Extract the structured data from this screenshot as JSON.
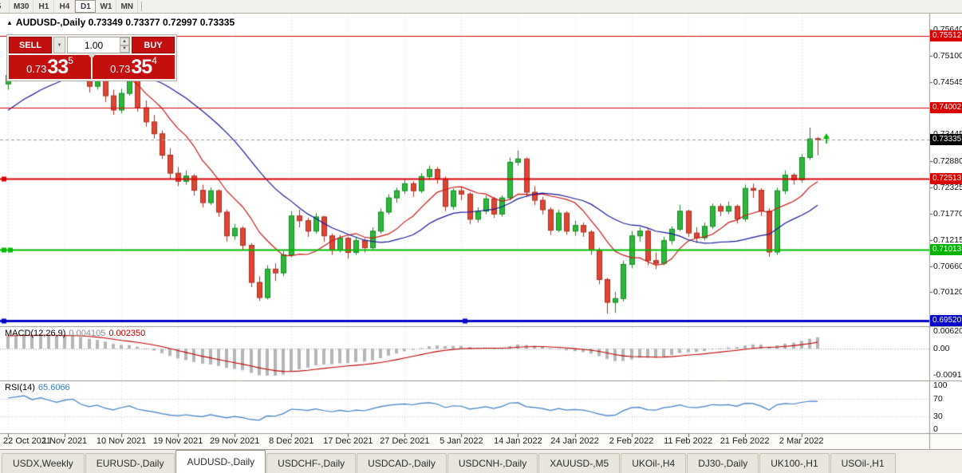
{
  "toolbar": {
    "timeframes": [
      {
        "label": "5",
        "active": false,
        "clipped": true
      },
      {
        "label": "M30",
        "active": false,
        "clipped": false
      },
      {
        "label": "H1",
        "active": false,
        "clipped": false
      },
      {
        "label": "H4",
        "active": false,
        "clipped": false
      },
      {
        "label": "D1",
        "active": true,
        "clipped": false
      },
      {
        "label": "W1",
        "active": false,
        "clipped": false
      },
      {
        "label": "MN",
        "active": false,
        "clipped": false
      }
    ]
  },
  "chart": {
    "collapse_arrow": "▲",
    "title": "AUDUSD-,Daily 0.73349 0.73377 0.72997 0.73335"
  },
  "trade_panel": {
    "sell_label": "SELL",
    "buy_label": "BUY",
    "volume": "1.00",
    "sell_price": {
      "base": "0.73",
      "big": "33",
      "sup": "5"
    },
    "buy_price": {
      "base": "0.73",
      "big": "35",
      "sup": "4"
    },
    "dropdown_icon": "▼",
    "spin_up_icon": "▲",
    "spin_down_icon": "▼"
  },
  "price_axis": {
    "labels": [
      {
        "text": "0.75640",
        "price": 0.7564,
        "kind": "plain"
      },
      {
        "text": "0.75512",
        "price": 0.75512,
        "kind": "red"
      },
      {
        "text": "0.75100",
        "price": 0.751,
        "kind": "plain"
      },
      {
        "text": "0.74545",
        "price": 0.74545,
        "kind": "plain"
      },
      {
        "text": "0.74002",
        "price": 0.74002,
        "kind": "red"
      },
      {
        "text": "0.73445",
        "price": 0.73445,
        "kind": "plain"
      },
      {
        "text": "0.73335",
        "price": 0.73335,
        "kind": "current"
      },
      {
        "text": "0.72880",
        "price": 0.7288,
        "kind": "plain"
      },
      {
        "text": "0.72513",
        "price": 0.72513,
        "kind": "red"
      },
      {
        "text": "0.72325",
        "price": 0.72325,
        "kind": "plain"
      },
      {
        "text": "0.71770",
        "price": 0.7177,
        "kind": "plain"
      },
      {
        "text": "0.71215",
        "price": 0.71215,
        "kind": "plain"
      },
      {
        "text": "0.71013",
        "price": 0.71013,
        "kind": "green"
      },
      {
        "text": "0.70660",
        "price": 0.7066,
        "kind": "plain"
      },
      {
        "text": "0.70120",
        "price": 0.7012,
        "kind": "plain"
      },
      {
        "text": "0.69520",
        "price": 0.6952,
        "kind": "blue"
      }
    ]
  },
  "indicators": {
    "macd": {
      "name": "MACD(12,26,9)",
      "value_main": "0.004105",
      "value_signal": "0.002350",
      "axis": [
        {
          "text": "0.00620",
          "value": 0.0062
        },
        {
          "text": "0.00",
          "value": 0
        },
        {
          "text": "-0.00919",
          "value": -0.00919
        }
      ]
    },
    "rsi": {
      "name": "RSI(14)",
      "value": "65.6066",
      "axis": [
        {
          "text": "100",
          "value": 100
        },
        {
          "text": "70",
          "value": 70
        },
        {
          "text": "30",
          "value": 30
        },
        {
          "text": "0",
          "value": 0
        }
      ],
      "guide_levels": [
        70,
        30
      ]
    }
  },
  "chart_data": {
    "type": "candlestick",
    "symbol": "AUDUSD-",
    "timeframe": "Daily",
    "ohlc": {
      "open": 0.73349,
      "high": 0.73377,
      "low": 0.72997,
      "close": 0.73335
    },
    "bid": 0.73335,
    "ma_fast_period": 9,
    "ma_slow_period": 21,
    "colors": {
      "up": "#2db83d",
      "up_edge": "#14881f",
      "down": "#e04434",
      "down_edge": "#a8301f",
      "ma_fast": "#d01616",
      "ma_slow": "#191999",
      "macd_hist": "#b5b5b5",
      "macd_signal": "#c00000",
      "rsi": "#3b7dc8",
      "grid": "#d9d9d9",
      "bid_line": "#9a9a9a"
    },
    "levels": [
      {
        "price": 0.75512,
        "color": "#d40000",
        "width": 1,
        "handle_xs": []
      },
      {
        "price": 0.74002,
        "color": "#d40000",
        "width": 1,
        "handle_xs": []
      },
      {
        "price": 0.72513,
        "color": "#d90000",
        "width": 2,
        "handle_xs": [
          2
        ]
      },
      {
        "price": 0.71013,
        "color": "#00bb00",
        "width": 2,
        "handle_xs": [
          2,
          10
        ]
      },
      {
        "price": 0.6952,
        "color": "#0202c8",
        "width": 3,
        "handle_xs": [
          2,
          580
        ]
      }
    ],
    "marker": {
      "kind": "up-arrow",
      "price": 0.7338,
      "color": "#00bb00"
    },
    "history_closes": [
      0.726,
      0.7238,
      0.7252,
      0.7275,
      0.729,
      0.7268,
      0.7245,
      0.7262,
      0.7295,
      0.7312,
      0.7335,
      0.7328,
      0.7352,
      0.7378,
      0.7402,
      0.7392,
      0.7415,
      0.7435,
      0.7458,
      0.7442,
      0.7465,
      0.7455,
      0.7472,
      0.746,
      0.7452,
      0.7466
    ],
    "candles": [
      [
        0.745,
        0.7478,
        0.7438,
        0.7468
      ],
      [
        0.7468,
        0.7492,
        0.7455,
        0.7488
      ],
      [
        0.7488,
        0.7525,
        0.748,
        0.7512
      ],
      [
        0.7512,
        0.752,
        0.7468,
        0.7482
      ],
      [
        0.7482,
        0.7528,
        0.7475,
        0.752
      ],
      [
        0.752,
        0.7532,
        0.749,
        0.75
      ],
      [
        0.75,
        0.7512,
        0.7462,
        0.7478
      ],
      [
        0.7478,
        0.7522,
        0.747,
        0.7515
      ],
      [
        0.7515,
        0.7545,
        0.7505,
        0.7536
      ],
      [
        0.7536,
        0.754,
        0.7472,
        0.748
      ],
      [
        0.748,
        0.749,
        0.7432,
        0.7445
      ],
      [
        0.7445,
        0.7478,
        0.7438,
        0.747
      ],
      [
        0.747,
        0.7475,
        0.7412,
        0.7425
      ],
      [
        0.7425,
        0.7438,
        0.7385,
        0.7395
      ],
      [
        0.7395,
        0.744,
        0.7388,
        0.743
      ],
      [
        0.743,
        0.7472,
        0.7425,
        0.7458
      ],
      [
        0.7458,
        0.7462,
        0.7392,
        0.74
      ],
      [
        0.74,
        0.7415,
        0.736,
        0.737
      ],
      [
        0.737,
        0.7385,
        0.7335,
        0.7345
      ],
      [
        0.7345,
        0.7352,
        0.7292,
        0.73
      ],
      [
        0.73,
        0.7315,
        0.725,
        0.7262
      ],
      [
        0.7262,
        0.7275,
        0.7235,
        0.7245
      ],
      [
        0.7245,
        0.7268,
        0.7238,
        0.7256
      ],
      [
        0.7256,
        0.726,
        0.7215,
        0.7226
      ],
      [
        0.7226,
        0.7238,
        0.719,
        0.72
      ],
      [
        0.72,
        0.7232,
        0.7195,
        0.7225
      ],
      [
        0.7225,
        0.7228,
        0.717,
        0.718
      ],
      [
        0.718,
        0.7185,
        0.7118,
        0.713
      ],
      [
        0.713,
        0.7155,
        0.7122,
        0.7146
      ],
      [
        0.7146,
        0.715,
        0.71,
        0.711
      ],
      [
        0.711,
        0.7115,
        0.7022,
        0.7032
      ],
      [
        0.7032,
        0.7045,
        0.6993,
        0.7
      ],
      [
        0.7,
        0.7068,
        0.6996,
        0.706
      ],
      [
        0.706,
        0.7072,
        0.7035,
        0.7052
      ],
      [
        0.7052,
        0.7098,
        0.7045,
        0.709
      ],
      [
        0.709,
        0.7182,
        0.7085,
        0.7172
      ],
      [
        0.7172,
        0.7185,
        0.7148,
        0.7162
      ],
      [
        0.7162,
        0.7168,
        0.7128,
        0.714
      ],
      [
        0.714,
        0.7178,
        0.7135,
        0.717
      ],
      [
        0.717,
        0.7172,
        0.7118,
        0.713
      ],
      [
        0.713,
        0.7135,
        0.709,
        0.71
      ],
      [
        0.71,
        0.7132,
        0.7095,
        0.7125
      ],
      [
        0.7125,
        0.7128,
        0.7082,
        0.7095
      ],
      [
        0.7095,
        0.7128,
        0.709,
        0.712
      ],
      [
        0.712,
        0.7125,
        0.7095,
        0.7105
      ],
      [
        0.7105,
        0.7148,
        0.71,
        0.714
      ],
      [
        0.714,
        0.7188,
        0.7135,
        0.718
      ],
      [
        0.718,
        0.7218,
        0.7175,
        0.721
      ],
      [
        0.721,
        0.7232,
        0.72,
        0.7225
      ],
      [
        0.7225,
        0.7248,
        0.7218,
        0.724
      ],
      [
        0.724,
        0.7245,
        0.7212,
        0.7225
      ],
      [
        0.7225,
        0.7262,
        0.722,
        0.7255
      ],
      [
        0.7255,
        0.7278,
        0.7248,
        0.727
      ],
      [
        0.727,
        0.7275,
        0.724,
        0.725
      ],
      [
        0.725,
        0.7255,
        0.7182,
        0.7192
      ],
      [
        0.7192,
        0.723,
        0.7185,
        0.7225
      ],
      [
        0.7225,
        0.7232,
        0.7205,
        0.7218
      ],
      [
        0.7218,
        0.7222,
        0.7155,
        0.7165
      ],
      [
        0.7165,
        0.719,
        0.7158,
        0.7182
      ],
      [
        0.7182,
        0.7215,
        0.7175,
        0.7208
      ],
      [
        0.7208,
        0.7212,
        0.7168,
        0.7176
      ],
      [
        0.7176,
        0.7215,
        0.717,
        0.721
      ],
      [
        0.721,
        0.7295,
        0.7205,
        0.7285
      ],
      [
        0.7285,
        0.731,
        0.7278,
        0.7292
      ],
      [
        0.7292,
        0.7295,
        0.7212,
        0.7222
      ],
      [
        0.7222,
        0.7235,
        0.7195,
        0.7205
      ],
      [
        0.7205,
        0.7212,
        0.7175,
        0.7185
      ],
      [
        0.7185,
        0.719,
        0.7132,
        0.7142
      ],
      [
        0.7142,
        0.7185,
        0.7138,
        0.7178
      ],
      [
        0.7178,
        0.7182,
        0.7132,
        0.714
      ],
      [
        0.714,
        0.7162,
        0.713,
        0.7152
      ],
      [
        0.7152,
        0.7158,
        0.7128,
        0.7138
      ],
      [
        0.7138,
        0.7142,
        0.709,
        0.71
      ],
      [
        0.71,
        0.7105,
        0.7028,
        0.7038
      ],
      [
        0.7038,
        0.7042,
        0.6966,
        0.699
      ],
      [
        0.699,
        0.7012,
        0.6968,
        0.6998
      ],
      [
        0.6998,
        0.7078,
        0.6992,
        0.707
      ],
      [
        0.707,
        0.714,
        0.7062,
        0.713
      ],
      [
        0.713,
        0.7148,
        0.7118,
        0.714
      ],
      [
        0.714,
        0.7145,
        0.7068,
        0.7078
      ],
      [
        0.7078,
        0.7095,
        0.706,
        0.7072
      ],
      [
        0.7072,
        0.7128,
        0.7068,
        0.712
      ],
      [
        0.712,
        0.715,
        0.7112,
        0.7144
      ],
      [
        0.7144,
        0.7195,
        0.714,
        0.7182
      ],
      [
        0.7182,
        0.7185,
        0.7128,
        0.7136
      ],
      [
        0.7136,
        0.7148,
        0.7115,
        0.7126
      ],
      [
        0.7126,
        0.7158,
        0.712,
        0.715
      ],
      [
        0.715,
        0.7198,
        0.7145,
        0.7192
      ],
      [
        0.7192,
        0.7198,
        0.7172,
        0.7182
      ],
      [
        0.7182,
        0.7202,
        0.7175,
        0.7192
      ],
      [
        0.7192,
        0.7196,
        0.7156,
        0.7166
      ],
      [
        0.7166,
        0.7238,
        0.716,
        0.723
      ],
      [
        0.723,
        0.724,
        0.721,
        0.7226
      ],
      [
        0.7226,
        0.723,
        0.7172,
        0.7182
      ],
      [
        0.7182,
        0.7188,
        0.7086,
        0.7096
      ],
      [
        0.7096,
        0.7232,
        0.709,
        0.7225
      ],
      [
        0.7225,
        0.7268,
        0.7218,
        0.7258
      ],
      [
        0.7258,
        0.7262,
        0.7238,
        0.7248
      ],
      [
        0.7248,
        0.7302,
        0.7242,
        0.7295
      ],
      [
        0.7295,
        0.7358,
        0.729,
        0.7334
      ],
      [
        0.73349,
        0.73377,
        0.72997,
        0.73335
      ]
    ],
    "date_ticks": [
      {
        "index": 0,
        "label": "22 Oct 2021"
      },
      {
        "index": 7,
        "label": "1 Nov 2021"
      },
      {
        "index": 14,
        "label": "10 Nov 2021"
      },
      {
        "index": 21,
        "label": "19 Nov 2021"
      },
      {
        "index": 28,
        "label": "29 Nov 2021"
      },
      {
        "index": 35,
        "label": "8 Dec 2021"
      },
      {
        "index": 42,
        "label": "17 Dec 2021"
      },
      {
        "index": 49,
        "label": "27 Dec 2021"
      },
      {
        "index": 56,
        "label": "5 Jan 2022"
      },
      {
        "index": 63,
        "label": "14 Jan 2022"
      },
      {
        "index": 70,
        "label": "24 Jan 2022"
      },
      {
        "index": 77,
        "label": "2 Feb 2022"
      },
      {
        "index": 84,
        "label": "11 Feb 2022"
      },
      {
        "index": 91,
        "label": "21 Feb 2022"
      },
      {
        "index": 98,
        "label": "2 Mar 2022"
      }
    ]
  },
  "tabs": {
    "items": [
      {
        "label": "USDX,Weekly",
        "active": false
      },
      {
        "label": "EURUSD-,Daily",
        "active": false
      },
      {
        "label": "AUDUSD-,Daily",
        "active": true
      },
      {
        "label": "USDCHF-,Daily",
        "active": false
      },
      {
        "label": "USDCAD-,Daily",
        "active": false
      },
      {
        "label": "USDCNH-,Daily",
        "active": false
      },
      {
        "label": "XAUUSD-,M5",
        "active": false
      },
      {
        "label": "UKOil-,H4",
        "active": false
      },
      {
        "label": "DJ30-,Daily",
        "active": false
      },
      {
        "label": "UK100-,H1",
        "active": false
      },
      {
        "label": "USOil-,H1",
        "active": false
      }
    ]
  }
}
